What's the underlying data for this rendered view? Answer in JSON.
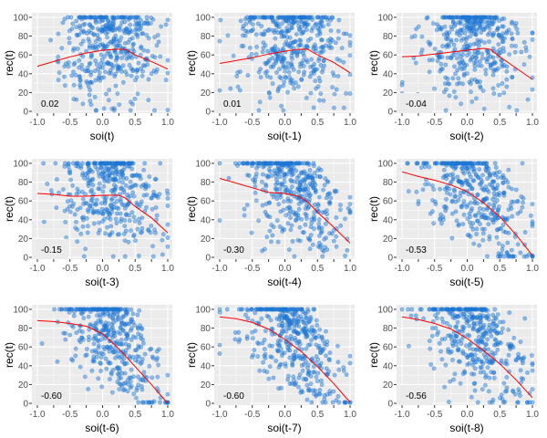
{
  "figure": {
    "title": "",
    "ylabel": "rec(t)",
    "layout": {
      "rows": 3,
      "cols": 3
    },
    "colors": {
      "panel_background": "#ebebeb",
      "grid": "#ffffff",
      "points": "#1f77d4",
      "smooth_line": "#ff0000",
      "label_box": "#ebebeb"
    }
  },
  "chart_data": [
    {
      "type": "scatter",
      "title": "",
      "xlabel": "soi(t)",
      "ylabel": "rec(t)",
      "xlim": [
        -1.0,
        1.0
      ],
      "ylim": [
        0,
        100
      ],
      "xticks": [
        "-1.0",
        "-0.5",
        "0.0",
        "0.5",
        "1.0"
      ],
      "yticks": [
        "0",
        "20",
        "40",
        "60",
        "80",
        "100"
      ],
      "grid": true,
      "correlation": "0.02",
      "smooth": {
        "x": [
          -1.0,
          -0.75,
          -0.5,
          -0.25,
          0.0,
          0.2,
          0.35,
          0.5,
          0.75,
          1.0
        ],
        "y": [
          48,
          53,
          58,
          62,
          65,
          66,
          66,
          60,
          53,
          45
        ]
      }
    },
    {
      "type": "scatter",
      "title": "",
      "xlabel": "soi(t-1)",
      "ylabel": "rec(t)",
      "xlim": [
        -1.0,
        1.0
      ],
      "ylim": [
        0,
        100
      ],
      "xticks": [
        "-1.0",
        "-0.5",
        "0.0",
        "0.5",
        "1.0"
      ],
      "yticks": [
        "0",
        "20",
        "40",
        "60",
        "80",
        "100"
      ],
      "grid": true,
      "correlation": "0.01",
      "smooth": {
        "x": [
          -1.0,
          -0.75,
          -0.5,
          -0.25,
          0.0,
          0.2,
          0.35,
          0.5,
          0.75,
          1.0
        ],
        "y": [
          51,
          54,
          57,
          61,
          64,
          66,
          66,
          60,
          52,
          41
        ]
      }
    },
    {
      "type": "scatter",
      "title": "",
      "xlabel": "soi(t-2)",
      "ylabel": "rec(t)",
      "xlim": [
        -1.0,
        1.0
      ],
      "ylim": [
        0,
        100
      ],
      "xticks": [
        "-1.0",
        "-0.5",
        "0.0",
        "0.5",
        "1.0"
      ],
      "yticks": [
        "0",
        "20",
        "40",
        "60",
        "80",
        "100"
      ],
      "grid": true,
      "correlation": "-0.04",
      "smooth": {
        "x": [
          -1.0,
          -0.75,
          -0.5,
          -0.25,
          0.0,
          0.25,
          0.35,
          0.5,
          0.75,
          1.0
        ],
        "y": [
          58,
          59,
          61,
          63,
          65,
          67,
          66,
          58,
          46,
          34
        ]
      }
    },
    {
      "type": "scatter",
      "title": "",
      "xlabel": "soi(t-3)",
      "ylabel": "rec(t)",
      "xlim": [
        -1.0,
        1.0
      ],
      "ylim": [
        0,
        100
      ],
      "xticks": [
        "-1.0",
        "-0.5",
        "0.0",
        "0.5",
        "1.0"
      ],
      "yticks": [
        "0",
        "20",
        "40",
        "60",
        "80",
        "100"
      ],
      "grid": true,
      "correlation": "-0.15",
      "smooth": {
        "x": [
          -1.0,
          -0.75,
          -0.5,
          -0.25,
          0.0,
          0.25,
          0.35,
          0.5,
          0.75,
          1.0
        ],
        "y": [
          68,
          67,
          65,
          65,
          66,
          66,
          63,
          54,
          42,
          26
        ]
      }
    },
    {
      "type": "scatter",
      "title": "",
      "xlabel": "soi(t-4)",
      "ylabel": "rec(t)",
      "xlim": [
        -1.0,
        1.0
      ],
      "ylim": [
        0,
        100
      ],
      "xticks": [
        "-1.0",
        "-0.5",
        "0.0",
        "0.5",
        "1.0"
      ],
      "yticks": [
        "0",
        "20",
        "40",
        "60",
        "80",
        "100"
      ],
      "grid": true,
      "correlation": "-0.30",
      "smooth": {
        "x": [
          -1.0,
          -0.75,
          -0.5,
          -0.25,
          0.0,
          0.2,
          0.35,
          0.5,
          0.75,
          1.0
        ],
        "y": [
          84,
          79,
          74,
          69,
          68,
          65,
          59,
          48,
          32,
          15
        ]
      }
    },
    {
      "type": "scatter",
      "title": "",
      "xlabel": "soi(t-5)",
      "ylabel": "rec(t)",
      "xlim": [
        -1.0,
        1.0
      ],
      "ylim": [
        0,
        100
      ],
      "xticks": [
        "-1.0",
        "-0.5",
        "0.0",
        "0.5",
        "1.0"
      ],
      "yticks": [
        "0",
        "20",
        "40",
        "60",
        "80",
        "100"
      ],
      "grid": true,
      "correlation": "-0.53",
      "smooth": {
        "x": [
          -1.0,
          -0.75,
          -0.5,
          -0.25,
          0.0,
          0.25,
          0.5,
          0.75,
          1.0
        ],
        "y": [
          91,
          86,
          82,
          77,
          70,
          58,
          43,
          24,
          2
        ]
      }
    },
    {
      "type": "scatter",
      "title": "",
      "xlabel": "soi(t-6)",
      "ylabel": "rec(t)",
      "xlim": [
        -1.0,
        1.0
      ],
      "ylim": [
        0,
        100
      ],
      "xticks": [
        "-1.0",
        "-0.5",
        "0.0",
        "0.5",
        "1.0"
      ],
      "yticks": [
        "0",
        "20",
        "40",
        "60",
        "80",
        "100"
      ],
      "grid": true,
      "correlation": "-0.60",
      "smooth": {
        "x": [
          -1.0,
          -0.75,
          -0.5,
          -0.25,
          0.0,
          0.25,
          0.5,
          0.75,
          1.0
        ],
        "y": [
          88,
          87,
          85,
          82,
          74,
          58,
          39,
          20,
          0
        ]
      }
    },
    {
      "type": "scatter",
      "title": "",
      "xlabel": "soi(t-7)",
      "ylabel": "rec(t)",
      "xlim": [
        -1.0,
        1.0
      ],
      "ylim": [
        0,
        100
      ],
      "xticks": [
        "-1.0",
        "-0.5",
        "0.0",
        "0.5",
        "1.0"
      ],
      "yticks": [
        "0",
        "20",
        "40",
        "60",
        "80",
        "100"
      ],
      "grid": true,
      "correlation": "-0.60",
      "smooth": {
        "x": [
          -1.0,
          -0.75,
          -0.5,
          -0.25,
          0.0,
          0.25,
          0.5,
          0.75,
          1.0
        ],
        "y": [
          92,
          90,
          86,
          79,
          68,
          55,
          39,
          21,
          1
        ]
      }
    },
    {
      "type": "scatter",
      "title": "",
      "xlabel": "soi(t-8)",
      "ylabel": "rec(t)",
      "xlim": [
        -1.0,
        1.0
      ],
      "ylim": [
        0,
        100
      ],
      "xticks": [
        "-1.0",
        "-0.5",
        "0.0",
        "0.5",
        "1.0"
      ],
      "yticks": [
        "0",
        "20",
        "40",
        "60",
        "80",
        "100"
      ],
      "grid": true,
      "correlation": "-0.56",
      "smooth": {
        "x": [
          -1.0,
          -0.75,
          -0.5,
          -0.25,
          0.0,
          0.25,
          0.5,
          0.75,
          1.0
        ],
        "y": [
          92,
          89,
          85,
          79,
          69,
          56,
          42,
          25,
          6
        ]
      }
    }
  ]
}
